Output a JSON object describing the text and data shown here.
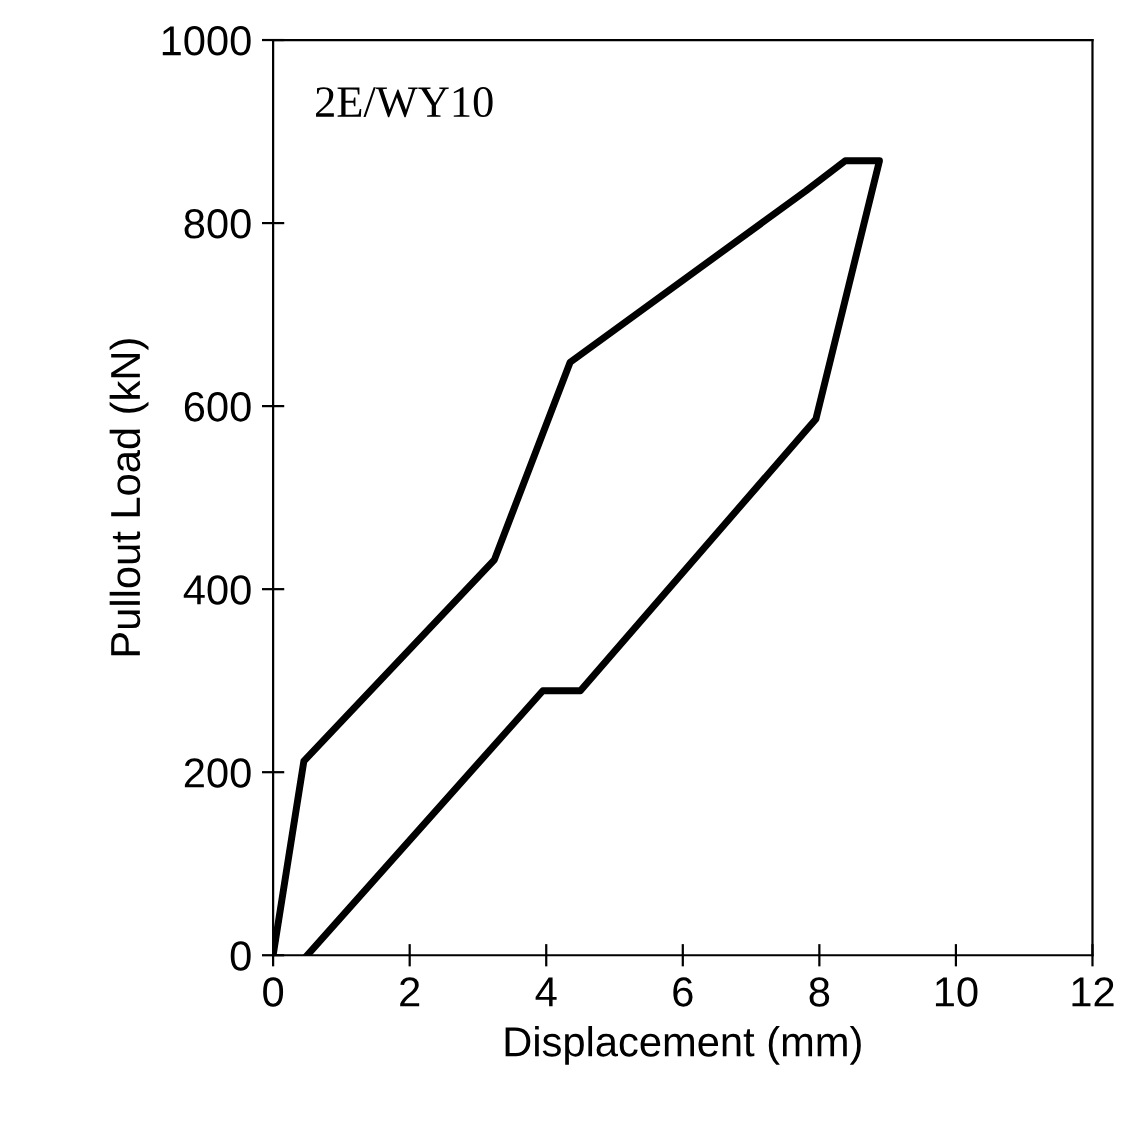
{
  "chart_data": {
    "type": "line",
    "xlabel": "Displacement (mm)",
    "ylabel": "Pullout Load (kN)",
    "annotations": [
      "2E/WY10"
    ],
    "x": [
      0,
      0.45,
      3.24,
      4.35,
      7.8,
      8.38,
      8.88,
      7.95,
      4.5,
      3.95,
      0.5
    ],
    "series": [
      {
        "color": "#000000",
        "values": [
          0,
          212,
          432,
          648,
          835,
          868,
          868,
          586,
          289,
          289,
          0
        ]
      }
    ],
    "xlim": [
      0,
      12
    ],
    "ylim": [
      0,
      1000
    ],
    "xticks": [
      0,
      2,
      4,
      6,
      8,
      10,
      12
    ],
    "yticks": [
      0,
      200,
      400,
      600,
      800,
      1000
    ],
    "grid": false,
    "legend": false,
    "marker": "none",
    "line_style": "solid"
  }
}
